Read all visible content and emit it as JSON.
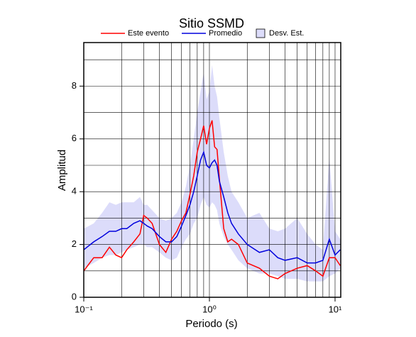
{
  "chart_data": {
    "type": "line",
    "title": "Sitio SSMD",
    "x_label": "Periodo (s)",
    "y_label": "Amplitud",
    "xscale": "log",
    "xlim": [
      0.1,
      11.1
    ],
    "ylim": [
      0,
      9.65
    ],
    "xticks": [
      {
        "value": 0.1,
        "label": "10⁻¹"
      },
      {
        "value": 1,
        "label": "10⁰"
      },
      {
        "value": 10,
        "label": "10¹"
      }
    ],
    "xgrid": [
      0.1,
      0.2,
      0.3,
      0.4,
      0.5,
      0.6,
      0.7,
      0.8,
      0.9,
      1,
      2,
      3,
      4,
      5,
      6,
      7,
      8,
      9,
      10
    ],
    "yticks": [
      0,
      2,
      4,
      6,
      8
    ],
    "ygrid": [
      1,
      2,
      3,
      4,
      5,
      6,
      7,
      8,
      9
    ],
    "legend": "top",
    "x": [
      0.1,
      0.12,
      0.14,
      0.16,
      0.18,
      0.2,
      0.22,
      0.25,
      0.28,
      0.3,
      0.32,
      0.35,
      0.4,
      0.45,
      0.5,
      0.55,
      0.6,
      0.65,
      0.7,
      0.75,
      0.8,
      0.85,
      0.9,
      0.95,
      1.0,
      1.05,
      1.1,
      1.15,
      1.2,
      1.3,
      1.4,
      1.5,
      1.7,
      2,
      2.5,
      3,
      3.5,
      4,
      5,
      6,
      7,
      8,
      9,
      10,
      11
    ],
    "series": [
      {
        "name": "Este evento",
        "color": "#ff0000",
        "values": [
          1.0,
          1.5,
          1.5,
          1.9,
          1.6,
          1.5,
          1.8,
          2.1,
          2.4,
          3.1,
          3.0,
          2.8,
          2.0,
          1.7,
          2.2,
          2.5,
          2.9,
          3.2,
          3.9,
          4.6,
          5.5,
          6.0,
          6.5,
          5.8,
          6.4,
          6.7,
          5.7,
          5.6,
          4.5,
          2.6,
          2.1,
          2.2,
          2.0,
          1.3,
          1.1,
          0.8,
          0.7,
          0.9,
          1.1,
          1.2,
          1.0,
          0.8,
          1.5,
          1.5,
          1.2
        ]
      },
      {
        "name": "Promedio",
        "color": "#0000dd",
        "values": [
          1.8,
          2.1,
          2.3,
          2.5,
          2.5,
          2.6,
          2.6,
          2.8,
          2.9,
          2.8,
          2.7,
          2.6,
          2.3,
          2.1,
          2.1,
          2.3,
          2.7,
          3.1,
          3.5,
          4.0,
          4.6,
          5.2,
          5.5,
          5.0,
          4.9,
          5.1,
          5.2,
          5.0,
          4.4,
          3.8,
          3.2,
          2.8,
          2.4,
          2.0,
          1.7,
          1.8,
          1.5,
          1.4,
          1.5,
          1.3,
          1.3,
          1.4,
          2.2,
          1.6,
          1.8
        ]
      },
      {
        "name": "Desv. Est.",
        "type": "band",
        "color": "#dcdcfa",
        "upper": [
          2.6,
          2.8,
          3.2,
          3.6,
          3.5,
          3.6,
          3.6,
          3.6,
          3.8,
          3.5,
          3.5,
          3.3,
          3.0,
          2.9,
          3.0,
          3.2,
          3.6,
          4.2,
          5.0,
          6.0,
          7.0,
          7.8,
          8.5,
          7.5,
          7.8,
          8.8,
          8.0,
          7.6,
          6.8,
          5.5,
          4.6,
          4.0,
          3.6,
          3.0,
          3.2,
          2.6,
          2.5,
          2.6,
          3.0,
          2.4,
          2.0,
          1.8,
          5.3,
          2.5,
          2.2
        ],
        "lower": [
          1.1,
          1.3,
          1.5,
          1.6,
          1.6,
          1.7,
          1.8,
          1.9,
          2.0,
          2.0,
          1.9,
          1.9,
          1.7,
          1.5,
          1.4,
          1.5,
          1.9,
          2.2,
          2.4,
          2.8,
          3.0,
          3.5,
          3.8,
          3.5,
          3.4,
          3.6,
          3.5,
          3.3,
          2.8,
          2.3,
          2.0,
          1.8,
          1.4,
          1.1,
          0.9,
          0.9,
          0.8,
          0.7,
          0.7,
          0.6,
          0.6,
          0.6,
          0.8,
          0.9,
          1.1
        ]
      }
    ]
  }
}
